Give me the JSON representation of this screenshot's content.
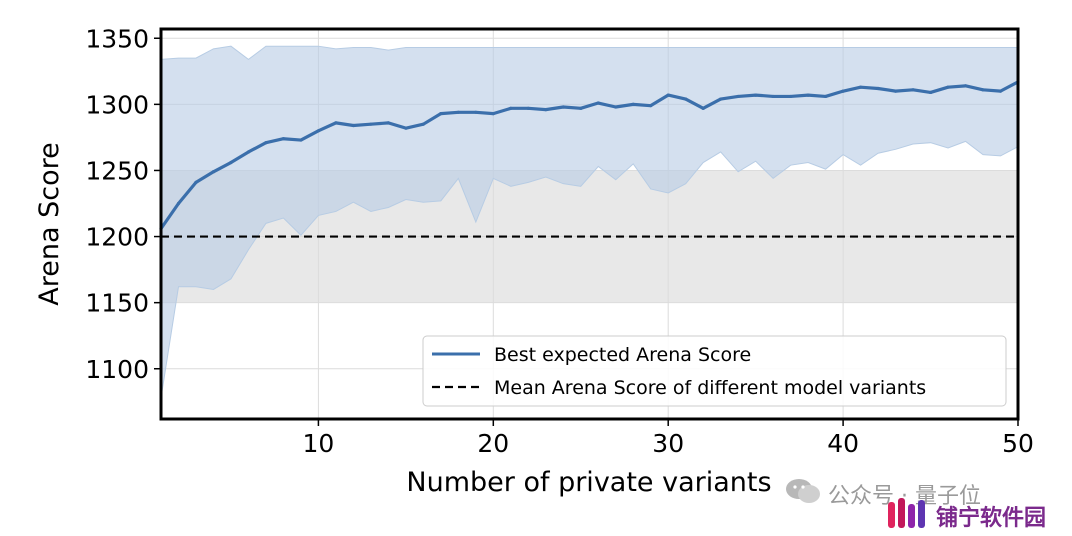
{
  "chart_data": {
    "type": "line",
    "xlabel": "Number of private variants",
    "ylabel": "Arena Score",
    "xlim": [
      1,
      50
    ],
    "ylim": [
      1062,
      1357
    ],
    "xticks": [
      10,
      20,
      30,
      40,
      50
    ],
    "yticks": [
      1100,
      1150,
      1200,
      1250,
      1300,
      1350
    ],
    "grid": true,
    "legend_position": "lower-right",
    "shaded_band": {
      "y0": 1150,
      "y1": 1250,
      "color": "#e8e8e8"
    },
    "reference_line": {
      "name": "Mean Arena Score of different model variants",
      "y": 1200,
      "style": "dashed",
      "color": "#000000"
    },
    "series": [
      {
        "name": "Best expected Arena Score",
        "color": "#3b6fab",
        "x": [
          1,
          2,
          3,
          4,
          5,
          6,
          7,
          8,
          9,
          10,
          11,
          12,
          13,
          14,
          15,
          16,
          17,
          18,
          19,
          20,
          21,
          22,
          23,
          24,
          25,
          26,
          27,
          28,
          29,
          30,
          31,
          32,
          33,
          34,
          35,
          36,
          37,
          38,
          39,
          40,
          41,
          42,
          43,
          44,
          45,
          46,
          47,
          48,
          49,
          50
        ],
        "y": [
          1206,
          1225,
          1241,
          1249,
          1256,
          1264,
          1271,
          1274,
          1273,
          1280,
          1286,
          1284,
          1285,
          1286,
          1282,
          1285,
          1293,
          1294,
          1294,
          1293,
          1297,
          1297,
          1296,
          1298,
          1297,
          1301,
          1298,
          1300,
          1299,
          1307,
          1304,
          1297,
          1304,
          1306,
          1307,
          1306,
          1306,
          1307,
          1306,
          1310,
          1313,
          1312,
          1310,
          1311,
          1309,
          1313,
          1314,
          1311,
          1310,
          1317
        ],
        "upper": [
          1334,
          1335,
          1335,
          1342,
          1344,
          1334,
          1344,
          1344,
          1344,
          1344,
          1342,
          1343,
          1343,
          1341,
          1343,
          1343,
          1343,
          1343,
          1343,
          1343,
          1343,
          1343,
          1343,
          1343,
          1343,
          1343,
          1343,
          1343,
          1343,
          1343,
          1343,
          1343,
          1343,
          1343,
          1343,
          1343,
          1343,
          1343,
          1343,
          1343,
          1343,
          1343,
          1343,
          1343,
          1343,
          1343,
          1343,
          1343,
          1343,
          1343
        ],
        "lower": [
          1078,
          1162,
          1162,
          1160,
          1168,
          1190,
          1210,
          1214,
          1201,
          1216,
          1219,
          1226,
          1219,
          1222,
          1228,
          1226,
          1227,
          1244,
          1211,
          1244,
          1238,
          1241,
          1245,
          1240,
          1238,
          1253,
          1243,
          1255,
          1236,
          1233,
          1240,
          1256,
          1264,
          1249,
          1257,
          1244,
          1254,
          1256,
          1251,
          1262,
          1254,
          1263,
          1266,
          1270,
          1271,
          1267,
          1272,
          1262,
          1261,
          1268
        ],
        "band_color": "#b7cce4"
      }
    ]
  },
  "watermark": {
    "text": "公众号 · 量子位",
    "brand": "铺宁软件园",
    "brand_color": "#7b2a8c",
    "icons": [
      "wechat-icon",
      "brand-logo-icon"
    ]
  }
}
